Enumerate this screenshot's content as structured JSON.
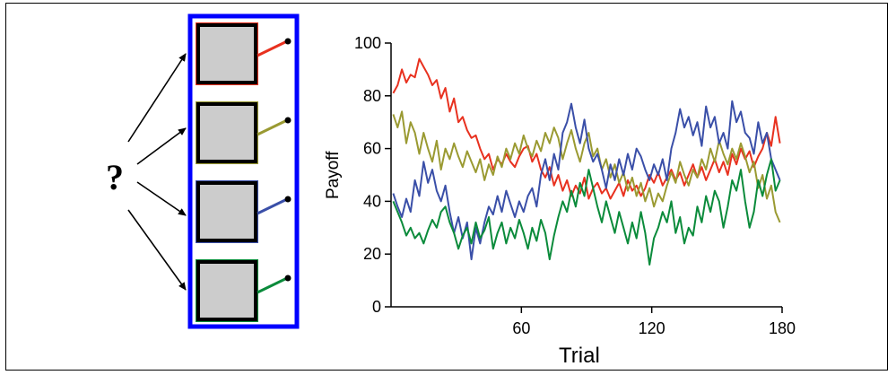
{
  "left_panel": {
    "question_mark": "?",
    "border_color": "#0000ff",
    "arms": [
      {
        "name": "red",
        "color": "#e8311f"
      },
      {
        "name": "olive",
        "color": "#9a9a32"
      },
      {
        "name": "blue",
        "color": "#3a4fa8"
      },
      {
        "name": "green",
        "color": "#0b8b3b"
      }
    ]
  },
  "chart_data": {
    "type": "line",
    "xlabel": "Trial",
    "ylabel": "Payoff",
    "xlim": [
      0,
      180
    ],
    "ylim": [
      0,
      100
    ],
    "xticks": [
      60,
      120,
      180
    ],
    "yticks": [
      0,
      20,
      40,
      60,
      80,
      100
    ],
    "grid": false,
    "series": [
      {
        "color": "#e8311f",
        "x": [
          1,
          3,
          5,
          7,
          9,
          11,
          13,
          15,
          17,
          19,
          21,
          23,
          25,
          27,
          29,
          31,
          33,
          35,
          37,
          39,
          41,
          43,
          45,
          47,
          49,
          51,
          53,
          55,
          57,
          59,
          61,
          63,
          65,
          67,
          69,
          71,
          73,
          75,
          77,
          79,
          81,
          83,
          85,
          87,
          89,
          91,
          93,
          95,
          97,
          99,
          101,
          103,
          105,
          107,
          109,
          111,
          113,
          115,
          117,
          119,
          121,
          123,
          125,
          127,
          129,
          131,
          133,
          135,
          137,
          139,
          141,
          143,
          145,
          147,
          149,
          151,
          153,
          155,
          157,
          159,
          161,
          163,
          165,
          167,
          169,
          171,
          173,
          175,
          177,
          179
        ],
        "y": [
          81,
          84,
          90,
          85,
          88,
          87,
          94,
          91,
          88,
          84,
          86,
          79,
          83,
          74,
          79,
          70,
          72,
          67,
          64,
          65,
          60,
          56,
          58,
          52,
          56,
          54,
          58,
          55,
          53,
          57,
          60,
          61,
          55,
          58,
          52,
          49,
          53,
          46,
          50,
          44,
          48,
          42,
          46,
          43,
          49,
          41,
          45,
          47,
          43,
          45,
          41,
          44,
          47,
          42,
          48,
          44,
          46,
          42,
          45,
          50,
          47,
          51,
          46,
          49,
          52,
          48,
          51,
          46,
          50,
          54,
          49,
          53,
          48,
          52,
          56,
          51,
          55,
          50,
          58,
          54,
          60,
          56,
          59,
          53,
          57,
          60,
          66,
          61,
          72,
          62
        ]
      },
      {
        "color": "#9a9a32",
        "x": [
          1,
          3,
          5,
          7,
          9,
          11,
          13,
          15,
          17,
          19,
          21,
          23,
          25,
          27,
          29,
          31,
          33,
          35,
          37,
          39,
          41,
          43,
          45,
          47,
          49,
          51,
          53,
          55,
          57,
          59,
          61,
          63,
          65,
          67,
          69,
          71,
          73,
          75,
          77,
          79,
          81,
          83,
          85,
          87,
          89,
          91,
          93,
          95,
          97,
          99,
          101,
          103,
          105,
          107,
          109,
          111,
          113,
          115,
          117,
          119,
          121,
          123,
          125,
          127,
          129,
          131,
          133,
          135,
          137,
          139,
          141,
          143,
          145,
          147,
          149,
          151,
          153,
          155,
          157,
          159,
          161,
          163,
          165,
          167,
          169,
          171,
          173,
          175,
          177,
          179
        ],
        "y": [
          73,
          68,
          74,
          62,
          70,
          66,
          58,
          66,
          60,
          55,
          63,
          52,
          60,
          56,
          62,
          57,
          53,
          59,
          55,
          51,
          56,
          48,
          54,
          50,
          57,
          53,
          60,
          56,
          62,
          58,
          65,
          60,
          57,
          63,
          59,
          66,
          62,
          68,
          64,
          56,
          62,
          67,
          60,
          55,
          62,
          66,
          57,
          60,
          52,
          56,
          49,
          54,
          47,
          51,
          44,
          49,
          42,
          47,
          40,
          45,
          38,
          43,
          40,
          46,
          51,
          47,
          55,
          50,
          46,
          52,
          49,
          56,
          52,
          60,
          55,
          63,
          58,
          54,
          60,
          56,
          62,
          57,
          51,
          55,
          45,
          50,
          41,
          46,
          36,
          32
        ]
      },
      {
        "color": "#3a4fa8",
        "x": [
          1,
          3,
          5,
          7,
          9,
          11,
          13,
          15,
          17,
          19,
          21,
          23,
          25,
          27,
          29,
          31,
          33,
          35,
          37,
          39,
          41,
          43,
          45,
          47,
          49,
          51,
          53,
          55,
          57,
          59,
          61,
          63,
          65,
          67,
          69,
          71,
          73,
          75,
          77,
          79,
          81,
          83,
          85,
          87,
          89,
          91,
          93,
          95,
          97,
          99,
          101,
          103,
          105,
          107,
          109,
          111,
          113,
          115,
          117,
          119,
          121,
          123,
          125,
          127,
          129,
          131,
          133,
          135,
          137,
          139,
          141,
          143,
          145,
          147,
          149,
          151,
          153,
          155,
          157,
          159,
          161,
          163,
          165,
          167,
          169,
          171,
          173,
          175,
          177,
          179
        ],
        "y": [
          43,
          38,
          34,
          41,
          36,
          48,
          42,
          55,
          47,
          52,
          44,
          40,
          46,
          36,
          28,
          34,
          26,
          32,
          18,
          30,
          24,
          32,
          38,
          35,
          42,
          36,
          44,
          39,
          34,
          40,
          36,
          42,
          45,
          38,
          50,
          56,
          48,
          58,
          52,
          66,
          70,
          77,
          68,
          62,
          71,
          60,
          55,
          58,
          52,
          45,
          54,
          48,
          56,
          50,
          58,
          52,
          60,
          57,
          52,
          48,
          54,
          50,
          56,
          48,
          60,
          66,
          75,
          68,
          72,
          65,
          70,
          61,
          76,
          68,
          72,
          62,
          66,
          60,
          78,
          70,
          74,
          66,
          64,
          58,
          70,
          62,
          66,
          56,
          52,
          48
        ]
      },
      {
        "color": "#0b8b3b",
        "x": [
          1,
          3,
          5,
          7,
          9,
          11,
          13,
          15,
          17,
          19,
          21,
          23,
          25,
          27,
          29,
          31,
          33,
          35,
          37,
          39,
          41,
          43,
          45,
          47,
          49,
          51,
          53,
          55,
          57,
          59,
          61,
          63,
          65,
          67,
          69,
          71,
          73,
          75,
          77,
          79,
          81,
          83,
          85,
          87,
          89,
          91,
          93,
          95,
          97,
          99,
          101,
          103,
          105,
          107,
          109,
          111,
          113,
          115,
          117,
          119,
          121,
          123,
          125,
          127,
          129,
          131,
          133,
          135,
          137,
          139,
          141,
          143,
          145,
          147,
          149,
          151,
          153,
          155,
          157,
          159,
          161,
          163,
          165,
          167,
          169,
          171,
          173,
          175,
          177,
          179
        ],
        "y": [
          40,
          36,
          32,
          27,
          30,
          26,
          28,
          24,
          29,
          33,
          30,
          36,
          38,
          32,
          28,
          22,
          27,
          30,
          24,
          32,
          26,
          29,
          34,
          22,
          28,
          32,
          24,
          30,
          26,
          33,
          28,
          22,
          30,
          25,
          33,
          28,
          18,
          27,
          34,
          40,
          36,
          44,
          38,
          47,
          42,
          52,
          45,
          38,
          32,
          40,
          34,
          28,
          36,
          30,
          24,
          32,
          26,
          36,
          28,
          16,
          26,
          30,
          36,
          32,
          40,
          28,
          34,
          24,
          30,
          27,
          38,
          32,
          42,
          36,
          44,
          40,
          30,
          38,
          48,
          44,
          52,
          40,
          30,
          36,
          48,
          42,
          50,
          56,
          44,
          48
        ]
      }
    ]
  }
}
